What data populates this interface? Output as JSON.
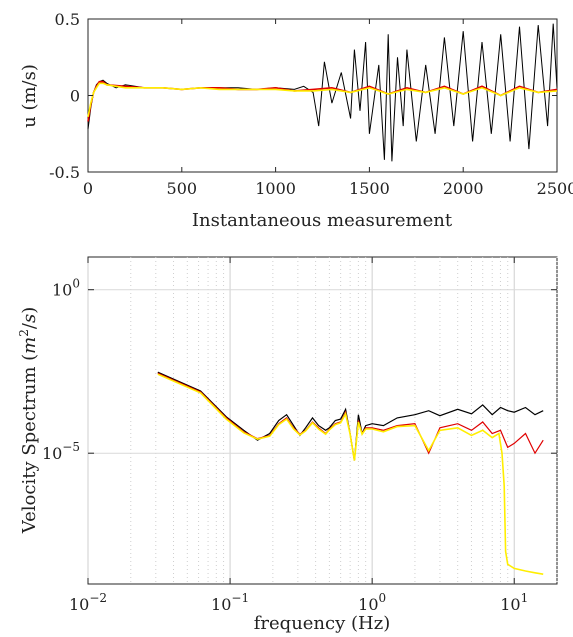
{
  "chart_data": [
    {
      "type": "line",
      "title": "",
      "xlabel": "Instantaneous measurement",
      "ylabel": "u (m/s)",
      "xlim": [
        0,
        2500
      ],
      "ylim": [
        -0.5,
        0.5
      ],
      "xticks": [
        "0",
        "500",
        "1000",
        "1500",
        "2000",
        "2500"
      ],
      "yticks": [
        "-0.5",
        "0",
        "0.5"
      ],
      "grid": false,
      "legend": "none",
      "series_colors": [
        "#000000",
        "#e00000",
        "#ffee00"
      ],
      "series": [
        {
          "color": "#000000",
          "x": [
            0,
            15,
            30,
            45,
            60,
            80,
            100,
            150,
            200,
            250,
            300,
            400,
            500,
            600,
            700,
            800,
            900,
            1000,
            1100,
            1150,
            1200,
            1230,
            1260,
            1300,
            1350,
            1400,
            1420,
            1450,
            1480,
            1500,
            1550,
            1580,
            1600,
            1620,
            1650,
            1680,
            1700,
            1750,
            1800,
            1850,
            1900,
            1950,
            2000,
            2050,
            2100,
            2150,
            2200,
            2250,
            2300,
            2350,
            2400,
            2450,
            2480,
            2500
          ],
          "values": [
            -0.22,
            -0.08,
            0.02,
            0.07,
            0.09,
            0.1,
            0.08,
            0.05,
            0.07,
            0.06,
            0.05,
            0.05,
            0.04,
            0.05,
            0.05,
            0.05,
            0.04,
            0.05,
            0.04,
            0.06,
            0.02,
            -0.2,
            0.22,
            -0.05,
            0.15,
            -0.15,
            0.3,
            -0.1,
            0.35,
            -0.25,
            0.2,
            -0.42,
            0.4,
            -0.43,
            0.25,
            -0.2,
            0.3,
            -0.3,
            0.2,
            -0.25,
            0.38,
            -0.2,
            0.42,
            -0.3,
            0.35,
            -0.25,
            0.4,
            -0.3,
            0.45,
            -0.35,
            0.46,
            -0.2,
            0.47,
            0.05
          ]
        },
        {
          "color": "#e00000",
          "x": [
            0,
            15,
            30,
            45,
            60,
            80,
            100,
            200,
            300,
            400,
            500,
            600,
            700,
            800,
            900,
            1000,
            1100,
            1200,
            1300,
            1400,
            1500,
            1600,
            1700,
            1800,
            1900,
            2000,
            2100,
            2200,
            2300,
            2400,
            2500
          ],
          "values": [
            -0.17,
            -0.06,
            0.02,
            0.06,
            0.09,
            0.09,
            0.07,
            0.06,
            0.05,
            0.05,
            0.04,
            0.05,
            0.05,
            0.04,
            0.04,
            0.05,
            0.03,
            0.04,
            0.05,
            0.02,
            0.06,
            0.01,
            0.05,
            0.02,
            0.06,
            0.01,
            0.06,
            0.0,
            0.06,
            0.02,
            0.04
          ]
        },
        {
          "color": "#ffee00",
          "x": [
            0,
            15,
            30,
            45,
            60,
            80,
            100,
            200,
            300,
            400,
            500,
            600,
            700,
            800,
            900,
            1000,
            1100,
            1200,
            1300,
            1400,
            1500,
            1600,
            1700,
            1800,
            1900,
            2000,
            2100,
            2200,
            2300,
            2400,
            2500
          ],
          "values": [
            -0.14,
            -0.05,
            0.02,
            0.05,
            0.08,
            0.08,
            0.07,
            0.05,
            0.05,
            0.05,
            0.04,
            0.05,
            0.04,
            0.04,
            0.04,
            0.04,
            0.03,
            0.03,
            0.04,
            0.02,
            0.05,
            0.01,
            0.04,
            0.02,
            0.05,
            0.01,
            0.05,
            0.0,
            0.05,
            0.02,
            0.03
          ]
        }
      ]
    },
    {
      "type": "line",
      "title": "",
      "xlabel": "frequency (Hz)",
      "ylabel": "Velocity Spectrum (m²/s)",
      "ylabel_parts": [
        "Velocity Spectrum (",
        "m",
        "2",
        "/",
        "s",
        ")"
      ],
      "xscale": "log",
      "yscale": "log",
      "xlim": [
        0.01,
        20
      ],
      "ylim": [
        1e-09,
        10
      ],
      "xticks": [
        0.01,
        0.1,
        1,
        10
      ],
      "yticks": [
        1,
        1e-05
      ],
      "xtick_labels": [
        {
          "base": "10",
          "exp": "−2"
        },
        {
          "base": "10",
          "exp": "−1"
        },
        {
          "base": "10",
          "exp": "0"
        },
        {
          "base": "10",
          "exp": "1"
        }
      ],
      "ytick_labels": [
        {
          "base": "10",
          "exp": "0"
        },
        {
          "base": "10",
          "exp": "−5"
        }
      ],
      "grid": true,
      "legend": "none",
      "series_colors": [
        "#000000",
        "#e00000",
        "#ffee00"
      ],
      "series": [
        {
          "color": "#000000",
          "x": [
            0.031,
            0.062,
            0.094,
            0.125,
            0.156,
            0.19,
            0.22,
            0.25,
            0.28,
            0.31,
            0.34,
            0.38,
            0.42,
            0.47,
            0.5,
            0.55,
            0.6,
            0.65,
            0.7,
            0.75,
            0.8,
            0.85,
            0.9,
            1.0,
            1.2,
            1.5,
            2.0,
            2.5,
            3.0,
            4.0,
            5.0,
            6.0,
            7.0,
            8.0,
            9.0,
            10.0,
            12.0,
            14.0,
            16.0
          ],
          "values": [
            0.003,
            0.0008,
            0.00013,
            5e-05,
            2.5e-05,
            4e-05,
            0.0001,
            0.00015,
            7e-05,
            3.5e-05,
            6e-05,
            0.00012,
            7e-05,
            5e-05,
            6e-05,
            0.0001,
            0.00011,
            0.00022,
            4e-05,
            6e-06,
            0.00015,
            4e-05,
            7e-05,
            8e-05,
            7e-05,
            0.00012,
            0.00015,
            0.0002,
            0.00014,
            0.00022,
            0.00016,
            0.0003,
            0.00015,
            0.00025,
            0.0002,
            0.00018,
            0.00025,
            0.00015,
            0.0002
          ]
        },
        {
          "color": "#e00000",
          "x": [
            0.031,
            0.062,
            0.094,
            0.125,
            0.156,
            0.19,
            0.22,
            0.25,
            0.28,
            0.31,
            0.34,
            0.38,
            0.42,
            0.47,
            0.5,
            0.55,
            0.6,
            0.65,
            0.7,
            0.75,
            0.8,
            0.85,
            0.9,
            1.0,
            1.2,
            1.5,
            2.0,
            2.5,
            3.0,
            4.0,
            5.0,
            6.0,
            7.0,
            8.0,
            9.0,
            10.0,
            12.0,
            14.0,
            16.0
          ],
          "values": [
            0.0028,
            0.00075,
            0.00012,
            4.5e-05,
            2.8e-05,
            3.5e-05,
            8e-05,
            0.00012,
            6e-05,
            3.8e-05,
            5e-05,
            9e-05,
            6e-05,
            4e-05,
            5.5e-05,
            8e-05,
            9e-05,
            0.00018,
            4e-05,
            6e-06,
            0.0001,
            4e-05,
            6e-05,
            6e-05,
            5e-05,
            7e-05,
            8e-05,
            1e-05,
            6e-05,
            8e-05,
            5e-05,
            9e-05,
            4e-05,
            5e-05,
            1.5e-05,
            2e-05,
            4e-05,
            1e-05,
            2.5e-05
          ]
        },
        {
          "color": "#ffee00",
          "x": [
            0.031,
            0.062,
            0.094,
            0.125,
            0.156,
            0.19,
            0.22,
            0.25,
            0.28,
            0.31,
            0.34,
            0.38,
            0.42,
            0.47,
            0.5,
            0.55,
            0.6,
            0.65,
            0.7,
            0.75,
            0.8,
            0.85,
            0.9,
            1.0,
            1.2,
            1.5,
            2.0,
            2.5,
            3.0,
            4.0,
            5.0,
            6.0,
            7.0,
            7.8,
            8.2,
            8.5,
            8.7,
            9.0,
            10.0,
            12.0,
            14.0,
            16.0
          ],
          "values": [
            0.0026,
            0.0007,
            0.00011,
            4.2e-05,
            2.7e-05,
            3.3e-05,
            7.5e-05,
            0.00011,
            5.5e-05,
            3.6e-05,
            4.8e-05,
            8.5e-05,
            5.5e-05,
            3.8e-05,
            5.2e-05,
            7.5e-05,
            8.5e-05,
            0.00016,
            3.8e-05,
            6e-06,
            9e-05,
            3.8e-05,
            5.5e-05,
            5.5e-05,
            4.5e-05,
            6.5e-05,
            7e-05,
            1.2e-05,
            5e-05,
            6e-05,
            3.5e-05,
            5e-05,
            3e-05,
            4e-05,
            1e-05,
            1e-06,
            1e-08,
            4e-09,
            3e-09,
            2.5e-09,
            2.2e-09,
            2e-09
          ]
        }
      ]
    }
  ]
}
